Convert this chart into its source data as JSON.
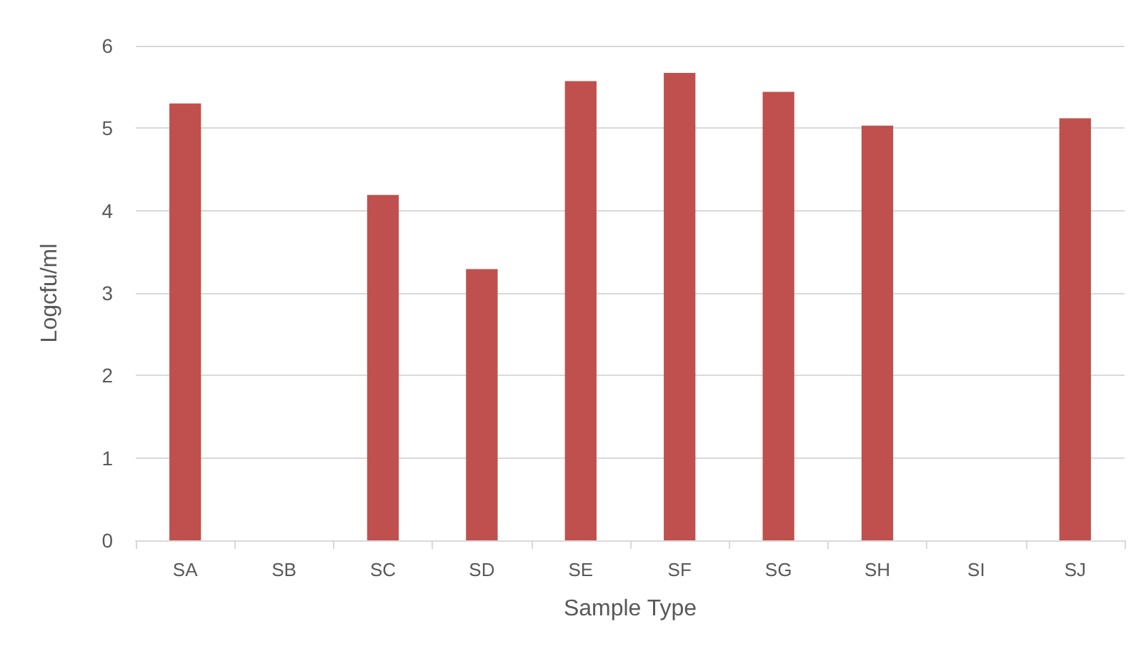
{
  "chart_data": {
    "type": "bar",
    "xlabel": "Sample Type",
    "ylabel": "Logcfu/ml",
    "categories": [
      "SA",
      "SB",
      "SC",
      "SD",
      "SE",
      "SF",
      "SG",
      "SH",
      "SI",
      "SJ"
    ],
    "values": [
      5.3,
      0,
      4.19,
      3.29,
      5.57,
      5.67,
      5.44,
      5.03,
      0,
      5.12
    ],
    "color": "#c0504d",
    "ylim": [
      0,
      6
    ],
    "yticks": [
      0,
      1,
      2,
      3,
      4,
      5,
      6
    ],
    "grid": "y"
  }
}
